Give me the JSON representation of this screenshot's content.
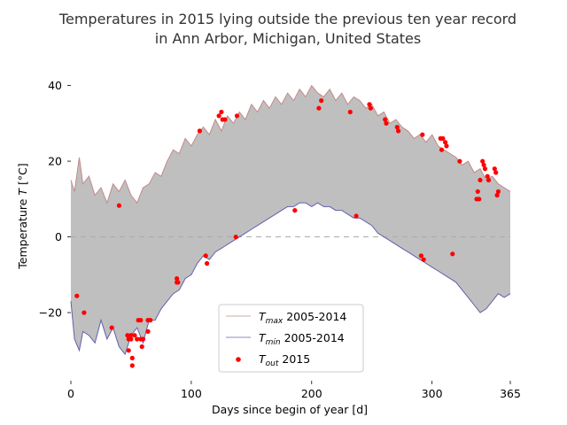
{
  "chart_data": {
    "type": "line",
    "title": "Temperatures in 2015 lying outside the previous ten year record",
    "subtitle": "in Ann Arbor, Michigan, United States",
    "xlabel": "Days since begin of year [d]",
    "ylabel": "Temperature T [°C]",
    "ylabel_italic_symbol": "T",
    "ylabel_prefix": "Temperature ",
    "ylabel_suffix": " [°C]",
    "xlim": [
      0,
      365
    ],
    "ylim": [
      -38,
      42
    ],
    "x_ticks": [
      0,
      100,
      200,
      300,
      365
    ],
    "y_ticks": [
      -20,
      0,
      20,
      40
    ],
    "grid": false,
    "fill_between_series": true,
    "fill_color": "#bfbfbf",
    "zero_line": {
      "y": 0,
      "style": "dashed",
      "color": "#aaaaaa"
    },
    "legend_position": "lower center",
    "legend": [
      {
        "label_main": "T",
        "label_sub": "max",
        "label_rest": " 2005-2014",
        "kind": "line",
        "color": "#c28a8a"
      },
      {
        "label_main": "T",
        "label_sub": "min",
        "label_rest": " 2005-2014",
        "kind": "line",
        "color": "#6060b0"
      },
      {
        "label_main": "T",
        "label_sub": "out",
        "label_rest": " 2015",
        "kind": "scatter",
        "color": "#ff0000"
      }
    ],
    "series": [
      {
        "name": "Tmax 2005-2014",
        "color": "#c28a8a",
        "x": [
          0,
          3,
          7,
          10,
          15,
          20,
          25,
          30,
          35,
          40,
          45,
          50,
          55,
          60,
          65,
          70,
          75,
          80,
          85,
          90,
          95,
          100,
          105,
          110,
          115,
          120,
          125,
          130,
          135,
          140,
          145,
          150,
          155,
          160,
          165,
          170,
          175,
          180,
          185,
          190,
          195,
          200,
          205,
          210,
          215,
          220,
          225,
          230,
          235,
          240,
          245,
          250,
          255,
          260,
          265,
          270,
          275,
          280,
          285,
          290,
          295,
          300,
          305,
          310,
          315,
          320,
          325,
          330,
          335,
          340,
          345,
          350,
          355,
          360,
          365
        ],
        "values": [
          15,
          12,
          21,
          14,
          16,
          11,
          13,
          9,
          14,
          12,
          15,
          11,
          9,
          13,
          14,
          17,
          16,
          20,
          23,
          22,
          26,
          24,
          27,
          29,
          27,
          31,
          28,
          32,
          30,
          33,
          31,
          35,
          33,
          36,
          34,
          37,
          35,
          38,
          36,
          39,
          37,
          40,
          38,
          37,
          39,
          36,
          38,
          35,
          37,
          36,
          34,
          35,
          32,
          33,
          30,
          31,
          29,
          28,
          26,
          27,
          25,
          27,
          24,
          23,
          22,
          21,
          19,
          20,
          17,
          18,
          15,
          16,
          14,
          13,
          12
        ]
      },
      {
        "name": "Tmin 2005-2014",
        "color": "#6060b0",
        "x": [
          0,
          3,
          7,
          10,
          15,
          20,
          25,
          30,
          35,
          40,
          45,
          50,
          55,
          60,
          65,
          70,
          75,
          80,
          85,
          90,
          95,
          100,
          105,
          110,
          115,
          120,
          125,
          130,
          135,
          140,
          145,
          150,
          155,
          160,
          165,
          170,
          175,
          180,
          185,
          190,
          195,
          200,
          205,
          210,
          215,
          220,
          225,
          230,
          235,
          240,
          245,
          250,
          255,
          260,
          265,
          270,
          275,
          280,
          285,
          290,
          295,
          300,
          305,
          310,
          315,
          320,
          325,
          330,
          335,
          340,
          345,
          350,
          355,
          360,
          365
        ],
        "values": [
          -17,
          -27,
          -30,
          -25,
          -26,
          -28,
          -22,
          -27,
          -24,
          -29,
          -31,
          -26,
          -24,
          -28,
          -22,
          -22,
          -19,
          -17,
          -15,
          -14,
          -11,
          -10,
          -7,
          -5,
          -6,
          -4,
          -3,
          -2,
          -1,
          0,
          1,
          2,
          3,
          4,
          5,
          6,
          7,
          8,
          8,
          9,
          9,
          8,
          9,
          8,
          8,
          7,
          7,
          6,
          5,
          5,
          4,
          3,
          1,
          0,
          -1,
          -2,
          -3,
          -4,
          -5,
          -6,
          -7,
          -8,
          -9,
          -10,
          -11,
          -12,
          -14,
          -16,
          -18,
          -20,
          -19,
          -17,
          -15,
          -16,
          -15
        ]
      },
      {
        "name": "Tout 2015",
        "color": "#ff0000",
        "type": "scatter",
        "points": [
          [
            5,
            -15.6
          ],
          [
            11,
            -20
          ],
          [
            34,
            -24
          ],
          [
            40,
            8.3
          ],
          [
            47,
            -26
          ],
          [
            48,
            -30
          ],
          [
            48,
            -27
          ],
          [
            50,
            -26
          ],
          [
            50,
            -27
          ],
          [
            51,
            -32
          ],
          [
            51,
            -34
          ],
          [
            53,
            -26
          ],
          [
            55,
            -27
          ],
          [
            56,
            -22
          ],
          [
            58,
            -22
          ],
          [
            58,
            -27
          ],
          [
            59,
            -29
          ],
          [
            60,
            -27
          ],
          [
            64,
            -22
          ],
          [
            64,
            -25
          ],
          [
            66,
            -22
          ],
          [
            88,
            -12
          ],
          [
            88,
            -11
          ],
          [
            89,
            -12
          ],
          [
            107,
            28
          ],
          [
            112,
            -5
          ],
          [
            113,
            -7
          ],
          [
            123,
            32
          ],
          [
            125,
            33
          ],
          [
            126,
            31
          ],
          [
            128,
            31
          ],
          [
            137,
            0
          ],
          [
            138,
            32
          ],
          [
            186,
            7
          ],
          [
            206,
            34
          ],
          [
            208,
            36
          ],
          [
            232,
            33
          ],
          [
            237,
            5.5
          ],
          [
            248,
            35
          ],
          [
            249,
            34
          ],
          [
            261,
            31
          ],
          [
            262,
            30
          ],
          [
            271,
            29
          ],
          [
            272,
            28
          ],
          [
            291,
            -5
          ],
          [
            292,
            27
          ],
          [
            293,
            -6
          ],
          [
            307,
            26
          ],
          [
            308,
            23
          ],
          [
            309,
            26
          ],
          [
            311,
            25
          ],
          [
            312,
            24
          ],
          [
            317,
            -4.5
          ],
          [
            323,
            20
          ],
          [
            337,
            10
          ],
          [
            338,
            12
          ],
          [
            339,
            10
          ],
          [
            340,
            15
          ],
          [
            342,
            20
          ],
          [
            343,
            19
          ],
          [
            344,
            18
          ],
          [
            346,
            16
          ],
          [
            347,
            15
          ],
          [
            352,
            18
          ],
          [
            353,
            17
          ],
          [
            354,
            11
          ],
          [
            355,
            12
          ]
        ]
      }
    ]
  }
}
